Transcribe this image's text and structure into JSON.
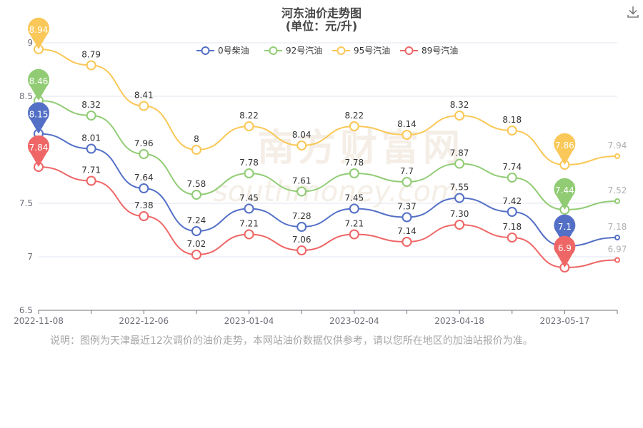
{
  "chart_data": {
    "type": "line",
    "title": "河东油价走势图",
    "subtitle": "(单位：元/升)",
    "x_tick_labels": [
      "2022-11-08",
      "2022-12-06",
      "2023-01-04",
      "2023-02-04",
      "2023-04-18",
      "2023-05-17"
    ],
    "x_tick_positions": [
      0,
      2,
      4,
      6,
      8,
      10
    ],
    "ylim": [
      6.5,
      9
    ],
    "y_ticks": [
      6.5,
      7,
      7.5,
      8.5,
      9
    ],
    "grid": true,
    "legend_position": "top-center",
    "watermark": "南方财富网 southmoney.com",
    "series": [
      {
        "name": "0号柴油",
        "color": "#5470c6",
        "values": [
          8.15,
          8.01,
          7.64,
          7.24,
          7.45,
          7.28,
          7.45,
          7.37,
          7.55,
          7.42,
          7.1,
          7.18
        ],
        "labels": [
          "",
          "8.01",
          "7.64",
          "7.24",
          "7.45",
          "7.28",
          "7.45",
          "7.37",
          "7.55",
          "7.42",
          "",
          "7.18"
        ],
        "max_pin": 0,
        "min_pin": 10,
        "pin_labels": [
          "8.15",
          "7.1"
        ]
      },
      {
        "name": "92号汽油",
        "color": "#91cc75",
        "values": [
          8.46,
          8.32,
          7.96,
          7.58,
          7.78,
          7.61,
          7.78,
          7.7,
          7.87,
          7.74,
          7.44,
          7.52
        ],
        "labels": [
          "",
          "8.32",
          "7.96",
          "7.58",
          "7.78",
          "7.61",
          "7.78",
          "7.7",
          "7.87",
          "7.74",
          "",
          "7.52"
        ],
        "max_pin": 0,
        "min_pin": 10,
        "pin_labels": [
          "8.46",
          "7.44"
        ]
      },
      {
        "name": "95号汽油",
        "color": "#fac858",
        "values": [
          8.94,
          8.79,
          8.41,
          8.0,
          8.22,
          8.04,
          8.22,
          8.14,
          8.32,
          8.18,
          7.86,
          7.94
        ],
        "labels": [
          "",
          "8.79",
          "8.41",
          "8",
          "8.22",
          "8.04",
          "8.22",
          "8.14",
          "8.32",
          "8.18",
          "",
          "7.94"
        ],
        "max_pin": 0,
        "min_pin": 10,
        "pin_labels": [
          "8.94",
          "7.86"
        ]
      },
      {
        "name": "89号汽油",
        "color": "#ee6666",
        "values": [
          7.84,
          7.71,
          7.38,
          7.02,
          7.21,
          7.06,
          7.21,
          7.14,
          7.3,
          7.18,
          6.9,
          6.97
        ],
        "labels": [
          "",
          "7.71",
          "7.38",
          "7.02",
          "7.21",
          "7.06",
          "7.21",
          "7.14",
          "7.30",
          "7.18",
          "",
          "6.97"
        ],
        "max_pin": 0,
        "min_pin": 10,
        "pin_labels": [
          "7.84",
          "6.9"
        ]
      }
    ]
  },
  "note": "说明：图例为天津最近12次调价的油价走势，本网站油价数据仅供参考，请以您所在地区的加油站报价为准。",
  "toolbar": {
    "download_icon": "download-icon"
  }
}
